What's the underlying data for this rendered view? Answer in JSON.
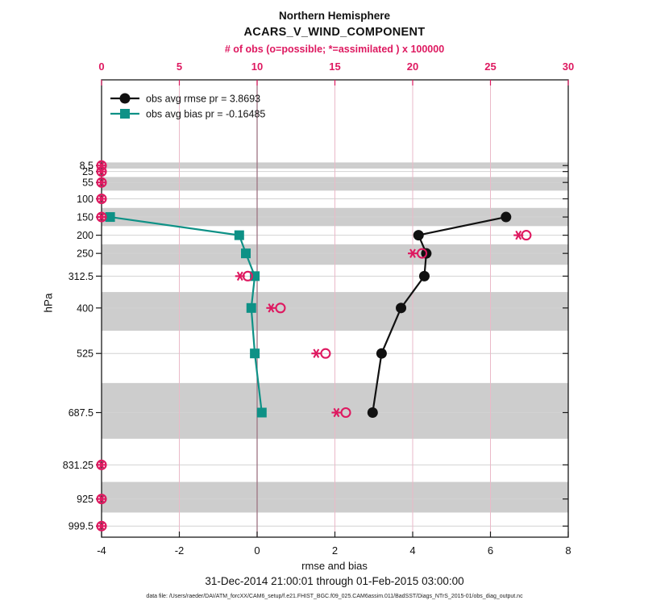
{
  "colors": {
    "magenta": "#de1960",
    "teal": "#0e9186",
    "black": "#111111",
    "band_gray": "#cdcdcd",
    "grid_gray": "#d2d2d2",
    "pink_grid": "#eab9c8",
    "zero_line": "#9e7482"
  },
  "chart_data": {
    "type": "line",
    "title": "Northern Hemisphere",
    "subtitle": "ACARS_V_WIND_COMPONENT",
    "top_axis_label": "# of obs (o=possible; *=assimilated ) x 100000",
    "xlabel": "rmse and bias",
    "ylabel": "hPa",
    "footer_date": "31-Dec-2014 21:00:01 through 01-Feb-2015 03:00:00",
    "footer_file": "data file: /Users/raeder/DAI/ATM_forcXX/CAM6_setup/f.e21.FHIST_BGC.f09_025.CAM6assim.011/BadSST/Diags_NTrS_2015-01/obs_diag_output.nc",
    "bottom_axis": {
      "min": -4,
      "max": 8,
      "ticks": [
        -4,
        -2,
        0,
        2,
        4,
        6,
        8
      ]
    },
    "top_axis": {
      "min": 0,
      "max": 30,
      "ticks": [
        0,
        5,
        10,
        15,
        20,
        25,
        30
      ]
    },
    "ylim": [
      1030,
      -227
    ],
    "grid": true,
    "legend_position": "top-left-inside",
    "levels": [
      8.5,
      25,
      55,
      100,
      150,
      200,
      250,
      312.5,
      400,
      525,
      687.5,
      831.25,
      925,
      999.5
    ],
    "shaded_band_levels": [
      8.5,
      55,
      150,
      250,
      400,
      687.5,
      925
    ],
    "series": [
      {
        "name": "obs avg rmse pr = 3.8693",
        "marker": "circle",
        "color": "#111111",
        "levels": [
          150,
          200,
          250,
          312.5,
          400,
          525,
          687.5
        ],
        "values": [
          6.4,
          4.15,
          4.35,
          4.3,
          3.7,
          3.2,
          2.97
        ]
      },
      {
        "name": "obs avg bias pr = -0.16485",
        "marker": "square",
        "color": "#0e9186",
        "levels": [
          150,
          200,
          250,
          312.5,
          400,
          525,
          687.5
        ],
        "values": [
          -3.78,
          -0.46,
          -0.29,
          -0.06,
          -0.15,
          -0.06,
          0.12
        ]
      }
    ],
    "obs_counts": {
      "units": "x 100000",
      "possible": [
        0.0,
        0.0,
        0.0,
        0.0,
        0.0,
        27.3,
        20.6,
        9.4,
        11.5,
        14.4,
        15.7,
        0.0,
        0.0,
        0.0
      ],
      "assimilated": [
        0.0,
        0.0,
        0.0,
        0.0,
        0.0,
        26.8,
        20.0,
        8.9,
        10.9,
        13.8,
        15.1,
        0.0,
        0.0,
        0.0
      ]
    }
  }
}
